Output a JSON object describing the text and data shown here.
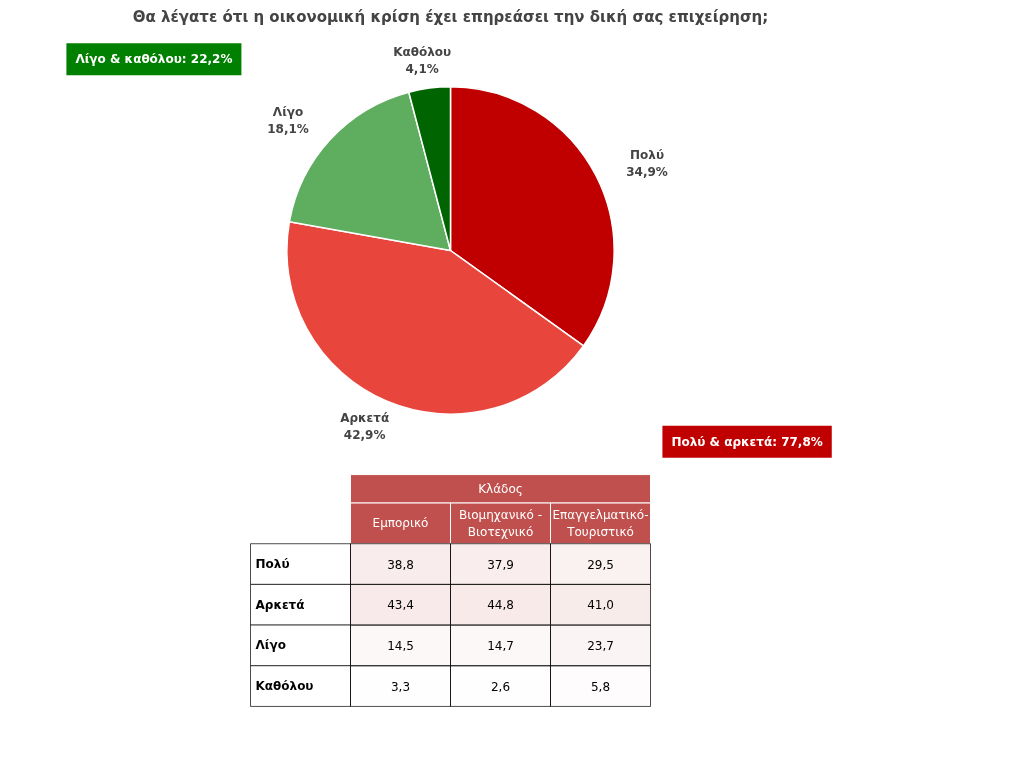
{
  "chart_data": [
    {
      "type": "pie",
      "title": "Θα λέγατε ότι η οικονομική κρίση έχει επηρεάσει την δική σας επιχείρηση;",
      "categories": [
        "Πολύ",
        "Αρκετά",
        "Λίγο",
        "Καθόλου"
      ],
      "values": [
        34.9,
        42.9,
        18.1,
        4.1
      ],
      "value_labels": [
        "34,9%",
        "42,9%",
        "18,1%",
        "4,1%"
      ],
      "colors": [
        "#c00000",
        "#e8463c",
        "#5fae5f",
        "#006400"
      ],
      "annotations": [
        "Λίγο & καθόλου: 22,2%",
        "Πολύ & αρκετά: 77,8%"
      ]
    },
    {
      "type": "heatmap",
      "title": "Κλάδος",
      "categories": [
        "Εμπορικό",
        "Βιομηχανικό - Βιοτεχνικό",
        "Επαγγελματικό-Τουριστικό"
      ],
      "y_categories": [
        "Πολύ",
        "Αρκετά",
        "Λίγο",
        "Καθόλου"
      ],
      "cells": [
        [
          38.8,
          37.9,
          29.5
        ],
        [
          43.4,
          44.8,
          41.0
        ],
        [
          14.5,
          14.7,
          23.7
        ],
        [
          3.3,
          2.6,
          5.8
        ]
      ],
      "cell_labels": [
        [
          "38,8",
          "37,9",
          "29,5"
        ],
        [
          "43,4",
          "44,8",
          "41,0"
        ],
        [
          "14,5",
          "14,7",
          "23,7"
        ],
        [
          "3,3",
          "2,6",
          "5,8"
        ]
      ]
    }
  ]
}
